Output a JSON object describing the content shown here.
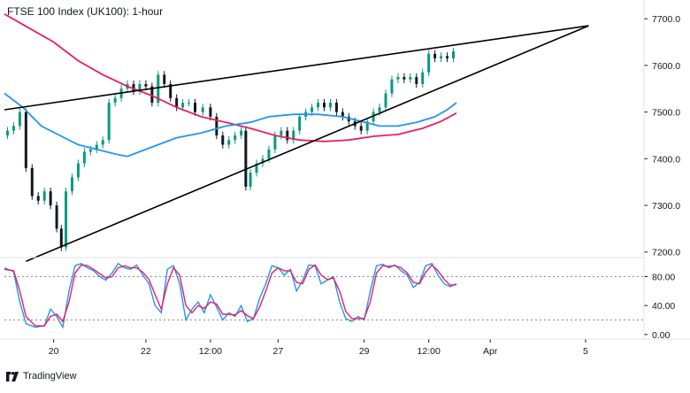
{
  "title": "FTSE 100 Index (UK100): 1-hour",
  "brand": "TradingView",
  "colors": {
    "bull": "#089981",
    "bear": "#131722",
    "ma_slow": "#e91e63",
    "ma_fast": "#2196f3",
    "stoch_k": "#2196f3",
    "stoch_d": "#e91e63",
    "trendline": "#000000",
    "axis": "#131722"
  },
  "chart_data": [
    {
      "type": "candlestick",
      "title": "FTSE 100 Index (UK100): 1-hour",
      "x_ticks": [
        "20",
        "22",
        "12:00",
        "27",
        "29",
        "12:00",
        "Apr",
        "5"
      ],
      "y_ticks": [
        "7700.0",
        "7600.0",
        "7500.0",
        "7400.0",
        "7300.0",
        "7200.0"
      ],
      "ylim": [
        7190,
        7725
      ],
      "xlim": [
        0,
        208
      ],
      "x_tick_positions": [
        16,
        46,
        67,
        89,
        117,
        138,
        158,
        189
      ],
      "grid": false,
      "legend": "none",
      "series": [
        {
          "name": "price",
          "kind": "close_path",
          "points": [
            [
              0,
              7450
            ],
            [
              2,
              7460
            ],
            [
              4,
              7470
            ],
            [
              6,
              7500
            ],
            [
              8,
              7380
            ],
            [
              10,
              7320
            ],
            [
              12,
              7310
            ],
            [
              14,
              7330
            ],
            [
              16,
              7300
            ],
            [
              18,
              7250
            ],
            [
              19,
              7210
            ],
            [
              21,
              7330
            ],
            [
              23,
              7360
            ],
            [
              25,
              7390
            ],
            [
              27,
              7415
            ],
            [
              29,
              7420
            ],
            [
              31,
              7430
            ],
            [
              33,
              7440
            ],
            [
              35,
              7520
            ],
            [
              37,
              7530
            ],
            [
              39,
              7550
            ],
            [
              41,
              7560
            ],
            [
              43,
              7545
            ],
            [
              45,
              7560
            ],
            [
              47,
              7555
            ],
            [
              49,
              7520
            ],
            [
              51,
              7580
            ],
            [
              53,
              7560
            ],
            [
              55,
              7530
            ],
            [
              57,
              7510
            ],
            [
              59,
              7520
            ],
            [
              61,
              7520
            ],
            [
              63,
              7500
            ],
            [
              66,
              7510
            ],
            [
              68,
              7490
            ],
            [
              70,
              7450
            ],
            [
              72,
              7430
            ],
            [
              74,
              7440
            ],
            [
              76,
              7450
            ],
            [
              78,
              7460
            ],
            [
              79,
              7340
            ],
            [
              81,
              7370
            ],
            [
              83,
              7390
            ],
            [
              85,
              7400
            ],
            [
              87,
              7420
            ],
            [
              89,
              7450
            ],
            [
              91,
              7460
            ],
            [
              93,
              7440
            ],
            [
              95,
              7460
            ],
            [
              97,
              7490
            ],
            [
              99,
              7500
            ],
            [
              101,
              7510
            ],
            [
              103,
              7520
            ],
            [
              105,
              7510
            ],
            [
              107,
              7520
            ],
            [
              109,
              7500
            ],
            [
              111,
              7490
            ],
            [
              113,
              7480
            ],
            [
              115,
              7470
            ],
            [
              117,
              7460
            ],
            [
              119,
              7480
            ],
            [
              121,
              7500
            ],
            [
              123,
              7510
            ],
            [
              125,
              7540
            ],
            [
              127,
              7570
            ],
            [
              129,
              7575
            ],
            [
              131,
              7570
            ],
            [
              133,
              7575
            ],
            [
              135,
              7560
            ],
            [
              137,
              7585
            ],
            [
              139,
              7625
            ],
            [
              141,
              7615
            ],
            [
              143,
              7620
            ],
            [
              145,
              7615
            ],
            [
              147,
              7630
            ]
          ]
        },
        {
          "name": "MA slow",
          "kind": "line",
          "points": [
            [
              0,
              7710
            ],
            [
              8,
              7680
            ],
            [
              16,
              7650
            ],
            [
              24,
              7610
            ],
            [
              32,
              7580
            ],
            [
              40,
              7555
            ],
            [
              48,
              7535
            ],
            [
              56,
              7510
            ],
            [
              64,
              7490
            ],
            [
              72,
              7478
            ],
            [
              80,
              7465
            ],
            [
              88,
              7450
            ],
            [
              96,
              7440
            ],
            [
              104,
              7437
            ],
            [
              112,
              7440
            ],
            [
              120,
              7448
            ],
            [
              128,
              7452
            ],
            [
              136,
              7465
            ],
            [
              142,
              7480
            ],
            [
              147,
              7498
            ]
          ]
        },
        {
          "name": "MA fast",
          "kind": "line",
          "points": [
            [
              0,
              7540
            ],
            [
              6,
              7510
            ],
            [
              12,
              7470
            ],
            [
              18,
              7450
            ],
            [
              24,
              7430
            ],
            [
              30,
              7420
            ],
            [
              36,
              7410
            ],
            [
              40,
              7405
            ],
            [
              44,
              7415
            ],
            [
              50,
              7430
            ],
            [
              56,
              7445
            ],
            [
              64,
              7455
            ],
            [
              72,
              7470
            ],
            [
              80,
              7478
            ],
            [
              86,
              7490
            ],
            [
              94,
              7495
            ],
            [
              102,
              7495
            ],
            [
              110,
              7490
            ],
            [
              116,
              7480
            ],
            [
              122,
              7470
            ],
            [
              128,
              7470
            ],
            [
              134,
              7478
            ],
            [
              140,
              7490
            ],
            [
              144,
              7505
            ],
            [
              147,
              7520
            ]
          ]
        },
        {
          "name": "trendline upper",
          "kind": "line",
          "points": [
            [
              0,
              7505
            ],
            [
              190,
              7685
            ]
          ]
        },
        {
          "name": "trendline lower",
          "kind": "line",
          "points": [
            [
              7,
              7180
            ],
            [
              190,
              7685
            ]
          ]
        }
      ]
    },
    {
      "type": "line",
      "title": "",
      "y_ticks": [
        "80.00",
        "40.00",
        "0.00"
      ],
      "ylim": [
        -5,
        105
      ],
      "reference_lines": [
        80,
        20
      ],
      "legend": "none",
      "series": [
        {
          "name": "%K",
          "points": [
            [
              0,
              92
            ],
            [
              3,
              87
            ],
            [
              5,
              45
            ],
            [
              7,
              15
            ],
            [
              10,
              10
            ],
            [
              13,
              12
            ],
            [
              15,
              35
            ],
            [
              17,
              25
            ],
            [
              19,
              10
            ],
            [
              21,
              60
            ],
            [
              23,
              95
            ],
            [
              25,
              98
            ],
            [
              27,
              92
            ],
            [
              29,
              88
            ],
            [
              31,
              80
            ],
            [
              33,
              75
            ],
            [
              35,
              85
            ],
            [
              37,
              98
            ],
            [
              39,
              92
            ],
            [
              41,
              90
            ],
            [
              43,
              96
            ],
            [
              45,
              82
            ],
            [
              47,
              70
            ],
            [
              49,
              40
            ],
            [
              51,
              30
            ],
            [
              53,
              90
            ],
            [
              55,
              95
            ],
            [
              57,
              70
            ],
            [
              59,
              20
            ],
            [
              61,
              35
            ],
            [
              63,
              45
            ],
            [
              65,
              30
            ],
            [
              67,
              55
            ],
            [
              69,
              38
            ],
            [
              71,
              20
            ],
            [
              73,
              30
            ],
            [
              75,
              25
            ],
            [
              77,
              40
            ],
            [
              79,
              18
            ],
            [
              81,
              22
            ],
            [
              83,
              50
            ],
            [
              85,
              70
            ],
            [
              87,
              95
            ],
            [
              89,
              92
            ],
            [
              91,
              82
            ],
            [
              93,
              90
            ],
            [
              95,
              60
            ],
            [
              97,
              75
            ],
            [
              99,
              96
            ],
            [
              101,
              95
            ],
            [
              103,
              70
            ],
            [
              105,
              75
            ],
            [
              107,
              80
            ],
            [
              109,
              45
            ],
            [
              111,
              22
            ],
            [
              113,
              18
            ],
            [
              115,
              25
            ],
            [
              117,
              20
            ],
            [
              119,
              60
            ],
            [
              121,
              95
            ],
            [
              123,
              97
            ],
            [
              125,
              92
            ],
            [
              127,
              96
            ],
            [
              129,
              88
            ],
            [
              131,
              82
            ],
            [
              133,
              65
            ],
            [
              135,
              72
            ],
            [
              137,
              95
            ],
            [
              139,
              98
            ],
            [
              141,
              82
            ],
            [
              143,
              70
            ],
            [
              145,
              66
            ],
            [
              147,
              70
            ]
          ]
        },
        {
          "name": "%D",
          "points": [
            [
              0,
              90
            ],
            [
              3,
              88
            ],
            [
              5,
              60
            ],
            [
              7,
              25
            ],
            [
              10,
              12
            ],
            [
              13,
              12
            ],
            [
              15,
              25
            ],
            [
              17,
              28
            ],
            [
              19,
              18
            ],
            [
              21,
              45
            ],
            [
              23,
              85
            ],
            [
              25,
              96
            ],
            [
              27,
              95
            ],
            [
              29,
              90
            ],
            [
              31,
              84
            ],
            [
              33,
              78
            ],
            [
              35,
              80
            ],
            [
              37,
              92
            ],
            [
              39,
              95
            ],
            [
              41,
              92
            ],
            [
              43,
              92
            ],
            [
              45,
              86
            ],
            [
              47,
              76
            ],
            [
              49,
              55
            ],
            [
              51,
              35
            ],
            [
              53,
              70
            ],
            [
              55,
              92
            ],
            [
              57,
              82
            ],
            [
              59,
              40
            ],
            [
              61,
              30
            ],
            [
              63,
              40
            ],
            [
              65,
              36
            ],
            [
              67,
              45
            ],
            [
              69,
              42
            ],
            [
              71,
              28
            ],
            [
              73,
              28
            ],
            [
              75,
              27
            ],
            [
              77,
              33
            ],
            [
              79,
              26
            ],
            [
              81,
              22
            ],
            [
              83,
              38
            ],
            [
              85,
              60
            ],
            [
              87,
              85
            ],
            [
              89,
              92
            ],
            [
              91,
              88
            ],
            [
              93,
              88
            ],
            [
              95,
              72
            ],
            [
              97,
              70
            ],
            [
              99,
              90
            ],
            [
              101,
              96
            ],
            [
              103,
              82
            ],
            [
              105,
              76
            ],
            [
              107,
              78
            ],
            [
              109,
              60
            ],
            [
              111,
              32
            ],
            [
              113,
              22
            ],
            [
              115,
              22
            ],
            [
              117,
              22
            ],
            [
              119,
              45
            ],
            [
              121,
              85
            ],
            [
              123,
              95
            ],
            [
              125,
              94
            ],
            [
              127,
              95
            ],
            [
              129,
              92
            ],
            [
              131,
              85
            ],
            [
              133,
              72
            ],
            [
              135,
              70
            ],
            [
              137,
              86
            ],
            [
              139,
              96
            ],
            [
              141,
              88
            ],
            [
              143,
              76
            ],
            [
              145,
              68
            ],
            [
              147,
              69
            ]
          ]
        }
      ]
    }
  ]
}
